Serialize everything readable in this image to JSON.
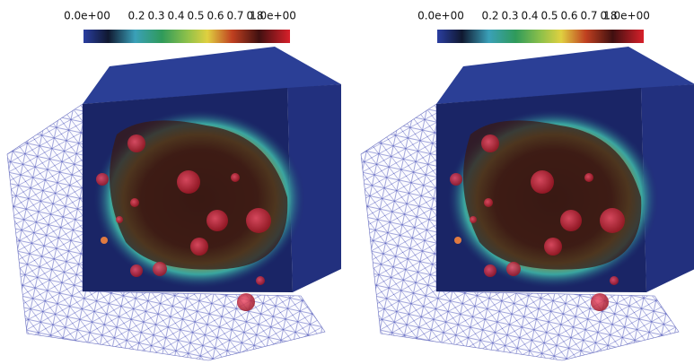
{
  "panels": [
    {
      "colorbar": {
        "labels": [
          "0.0e+00",
          "0.2",
          "0.3",
          "0.4",
          "0.5",
          "0.6",
          "0.7",
          "0.8",
          "1.0e+00"
        ]
      }
    },
    {
      "colorbar": {
        "labels": [
          "0.0e+00",
          "0.2",
          "0.3",
          "0.4",
          "0.5",
          "0.6",
          "0.7",
          "0.8",
          "1.0e+00"
        ]
      }
    }
  ]
}
